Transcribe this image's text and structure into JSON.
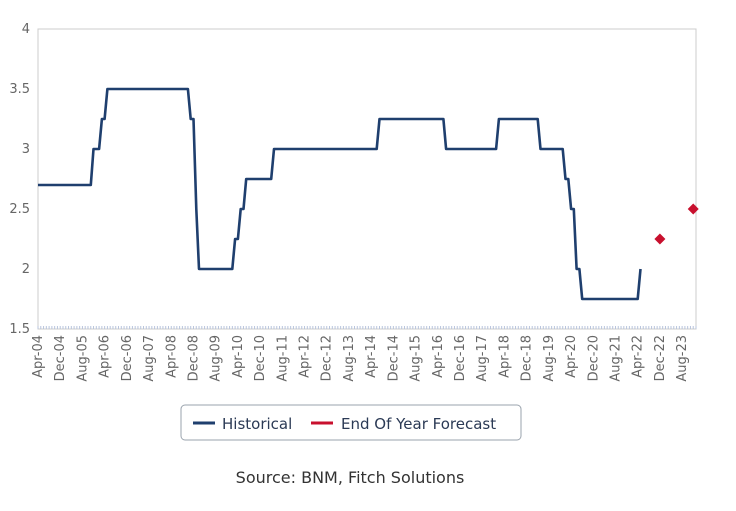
{
  "chart_data": {
    "type": "line",
    "x_tick_labels": [
      "Apr-04",
      "Dec-04",
      "Aug-05",
      "Apr-06",
      "Dec-06",
      "Aug-07",
      "Apr-08",
      "Dec-08",
      "Aug-09",
      "Apr-10",
      "Dec-10",
      "Aug-11",
      "Apr-12",
      "Dec-12",
      "Aug-13",
      "Apr-14",
      "Dec-14",
      "Aug-15",
      "Apr-16",
      "Dec-16",
      "Aug-17",
      "Apr-18",
      "Dec-18",
      "Aug-19",
      "Apr-20",
      "Dec-20",
      "Aug-21",
      "Apr-22",
      "Dec-22",
      "Aug-23"
    ],
    "y_tick_labels": [
      "1.5",
      "2",
      "2.5",
      "3",
      "3.5",
      "4"
    ],
    "ylim": [
      1.5,
      4
    ],
    "xlim": [
      "2004-04",
      "2024-01"
    ],
    "grid": false,
    "legend_position": "bottom",
    "series": [
      {
        "name": "Historical",
        "color": "#1f3f6e",
        "style": "step-line",
        "points": [
          [
            "2004-04",
            2.7
          ],
          [
            "2005-11",
            2.7
          ],
          [
            "2005-12",
            3.0
          ],
          [
            "2006-02",
            3.0
          ],
          [
            "2006-03",
            3.25
          ],
          [
            "2006-04",
            3.25
          ],
          [
            "2006-05",
            3.5
          ],
          [
            "2008-10",
            3.5
          ],
          [
            "2008-11",
            3.25
          ],
          [
            "2008-12",
            3.25
          ],
          [
            "2009-01",
            2.5
          ],
          [
            "2009-02",
            2.0
          ],
          [
            "2010-02",
            2.0
          ],
          [
            "2010-03",
            2.25
          ],
          [
            "2010-04",
            2.25
          ],
          [
            "2010-05",
            2.5
          ],
          [
            "2010-06",
            2.5
          ],
          [
            "2010-07",
            2.75
          ],
          [
            "2011-04",
            2.75
          ],
          [
            "2011-05",
            3.0
          ],
          [
            "2014-06",
            3.0
          ],
          [
            "2014-07",
            3.25
          ],
          [
            "2016-06",
            3.25
          ],
          [
            "2016-07",
            3.0
          ],
          [
            "2018-01",
            3.0
          ],
          [
            "2018-02",
            3.25
          ],
          [
            "2019-04",
            3.25
          ],
          [
            "2019-05",
            3.0
          ],
          [
            "2020-01",
            3.0
          ],
          [
            "2020-02",
            2.75
          ],
          [
            "2020-03",
            2.75
          ],
          [
            "2020-04",
            2.5
          ],
          [
            "2020-05",
            2.5
          ],
          [
            "2020-06",
            2.0
          ],
          [
            "2020-07",
            2.0
          ],
          [
            "2020-08",
            1.75
          ],
          [
            "2022-04",
            1.75
          ],
          [
            "2022-05",
            2.0
          ]
        ]
      },
      {
        "name": "End Of Year Forecast",
        "color": "#c8102e",
        "style": "markers",
        "points": [
          [
            "2022-12",
            2.25
          ],
          [
            "2023-12",
            2.5
          ]
        ]
      }
    ]
  },
  "source": "Source: BNM, Fitch Solutions"
}
